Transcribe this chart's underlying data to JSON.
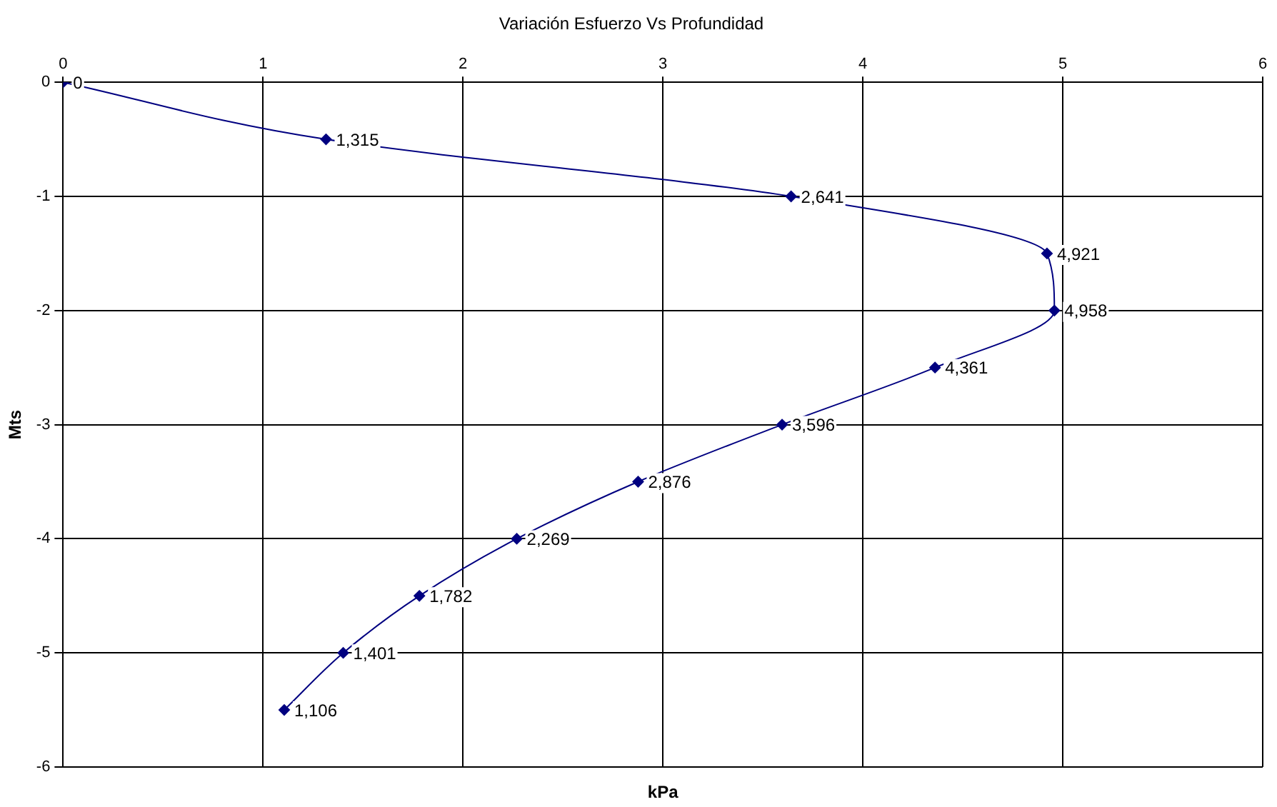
{
  "chart_data": {
    "type": "line",
    "title": "Variación Esfuerzo Vs Profundidad",
    "xlabel": "kPa",
    "ylabel": "Mts",
    "x": [
      0,
      1.315,
      3.641,
      4.921,
      4.958,
      4.361,
      3.596,
      2.876,
      2.269,
      1.782,
      1.401,
      1.106
    ],
    "series": [
      {
        "color": "#000080",
        "values": [
          0,
          -0.5,
          -1,
          -1.5,
          -2,
          -2.5,
          -3,
          -3.5,
          -4,
          -4.5,
          -5,
          -5.5
        ]
      }
    ],
    "annotations": [
      {
        "text": "0",
        "x": 0,
        "y": 0
      },
      {
        "text": "1,315",
        "x": 1.315,
        "y": -0.5
      },
      {
        "text": "2,641",
        "x": 3.641,
        "y": -1
      },
      {
        "text": "4,921",
        "x": 4.921,
        "y": -1.5
      },
      {
        "text": "4,958",
        "x": 4.958,
        "y": -2
      },
      {
        "text": "4,361",
        "x": 4.361,
        "y": -2.5
      },
      {
        "text": "3,596",
        "x": 3.596,
        "y": -3
      },
      {
        "text": "2,876",
        "x": 2.876,
        "y": -3.5
      },
      {
        "text": "2,269",
        "x": 2.269,
        "y": -4
      },
      {
        "text": "1,782",
        "x": 1.782,
        "y": -4.5
      },
      {
        "text": "1,401",
        "x": 1.401,
        "y": -5
      },
      {
        "text": "1,106",
        "x": 1.106,
        "y": -5.5
      }
    ],
    "xlim": [
      0,
      6
    ],
    "xticks": [
      0,
      1,
      2,
      3,
      4,
      5,
      6
    ],
    "ylim": [
      -6,
      0
    ],
    "yticks": [
      0,
      -1,
      -2,
      -3,
      -4,
      -5,
      -6
    ],
    "grid": true,
    "legend": false,
    "marker": "diamond",
    "line_style": "solid"
  }
}
